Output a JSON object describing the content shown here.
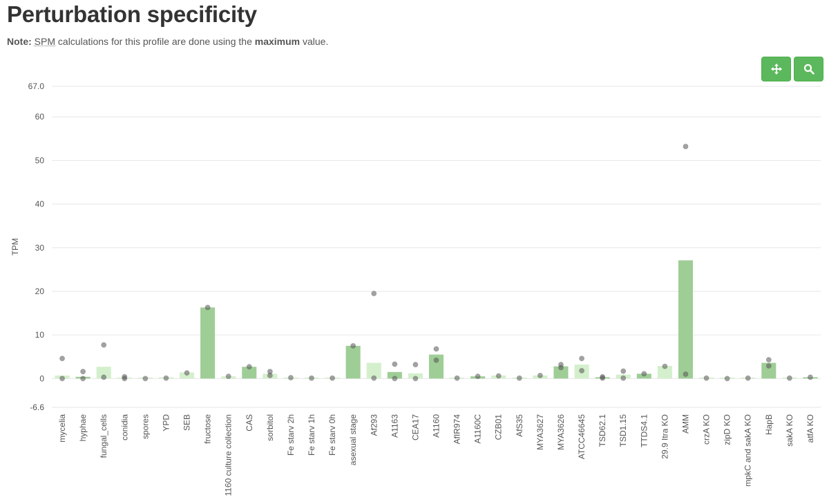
{
  "page": {
    "title": "Perturbation specificity",
    "note_label": "Note:",
    "note_abbr": "SPM",
    "note_text_1": " calculations for this profile are done using the ",
    "note_bold": "maximum",
    "note_text_2": " value."
  },
  "toolbar": {
    "pan_icon": "move-arrows-icon",
    "zoom_icon": "magnifier-icon",
    "color": "#5cb85c"
  },
  "colors": {
    "bar_dark": "#9fcd96",
    "bar_light": "#d4efcc",
    "dot": "#555555",
    "grid": "#e6e6e6"
  },
  "chart_data": {
    "type": "bar",
    "ylabel": "TPM",
    "ylim": [
      -6.6,
      67.0
    ],
    "yticks": [
      "67.0",
      "60",
      "50",
      "40",
      "30",
      "20",
      "10",
      "0",
      "-6.6"
    ],
    "ytick_values": [
      67.0,
      60,
      50,
      40,
      30,
      20,
      10,
      0,
      -6.6
    ],
    "grid": true,
    "categories": [
      "mycelia",
      "hyphae",
      "fungal_cells",
      "conidia",
      "spores",
      "YPD",
      "SEB",
      "fructose",
      "1160 culture collection",
      "CAS",
      "sorbitol",
      "Fe starv 2h",
      "Fe starv 1h",
      "Fe starv 0h",
      "asexual stage",
      "Af293",
      "A1163",
      "CEA17",
      "A1160",
      "AfIR974",
      "A1160C",
      "CZB01",
      "AfS35",
      "MYA3627",
      "MYA3626",
      "ATCC46645",
      "TSD62.1",
      "TSD1.15",
      "TTDS4.1",
      "29.9 Itra KO",
      "AMM",
      "crzA KO",
      "zipD KO",
      "mpkC and sakA KO",
      "HapB",
      "sakA KO",
      "atfA KO"
    ],
    "values": [
      0.7,
      0.4,
      2.7,
      0.2,
      0.1,
      0.3,
      1.4,
      16.3,
      0.5,
      2.7,
      1.1,
      0.2,
      0.1,
      0.1,
      7.5,
      3.6,
      1.5,
      1.2,
      5.5,
      0.1,
      0.5,
      0.7,
      0.1,
      0.7,
      2.8,
      3.2,
      0.3,
      0.9,
      1.1,
      2.9,
      27.1,
      0.1,
      0.0,
      0.1,
      3.6,
      0.1,
      0.3
    ],
    "shade": [
      "light",
      "dark",
      "light",
      "light",
      "light",
      "light",
      "light",
      "dark",
      "light",
      "dark",
      "light",
      "light",
      "light",
      "light",
      "dark",
      "light",
      "dark",
      "light",
      "dark",
      "light",
      "dark",
      "light",
      "light",
      "light",
      "dark",
      "light",
      "dark",
      "light",
      "dark",
      "light",
      "dark",
      "light",
      "light",
      "light",
      "dark",
      "light",
      "dark"
    ],
    "points": [
      [
        4.6,
        0.0
      ],
      [
        1.6,
        0.0
      ],
      [
        7.7,
        0.3
      ],
      [
        0.4,
        0.0
      ],
      [
        0.0
      ],
      [
        0.1
      ],
      [
        1.3
      ],
      [
        16.3
      ],
      [
        0.5
      ],
      [
        2.7
      ],
      [
        1.6,
        0.7
      ],
      [
        0.2
      ],
      [
        0.1
      ],
      [
        0.1
      ],
      [
        7.5
      ],
      [
        19.5,
        0.1
      ],
      [
        3.3,
        0.0
      ],
      [
        3.2,
        0.0
      ],
      [
        6.8,
        4.2
      ],
      [
        0.1
      ],
      [
        0.5
      ],
      [
        0.6
      ],
      [
        0.1
      ],
      [
        0.7
      ],
      [
        3.2,
        2.5
      ],
      [
        4.6,
        1.8
      ],
      [
        0.4,
        0.1
      ],
      [
        1.7,
        0.1
      ],
      [
        1.1
      ],
      [
        2.8
      ],
      [
        53.2,
        1.0
      ],
      [
        0.1
      ],
      [
        0.0
      ],
      [
        0.1
      ],
      [
        4.3,
        2.9
      ],
      [
        0.1
      ],
      [
        0.3
      ]
    ]
  }
}
